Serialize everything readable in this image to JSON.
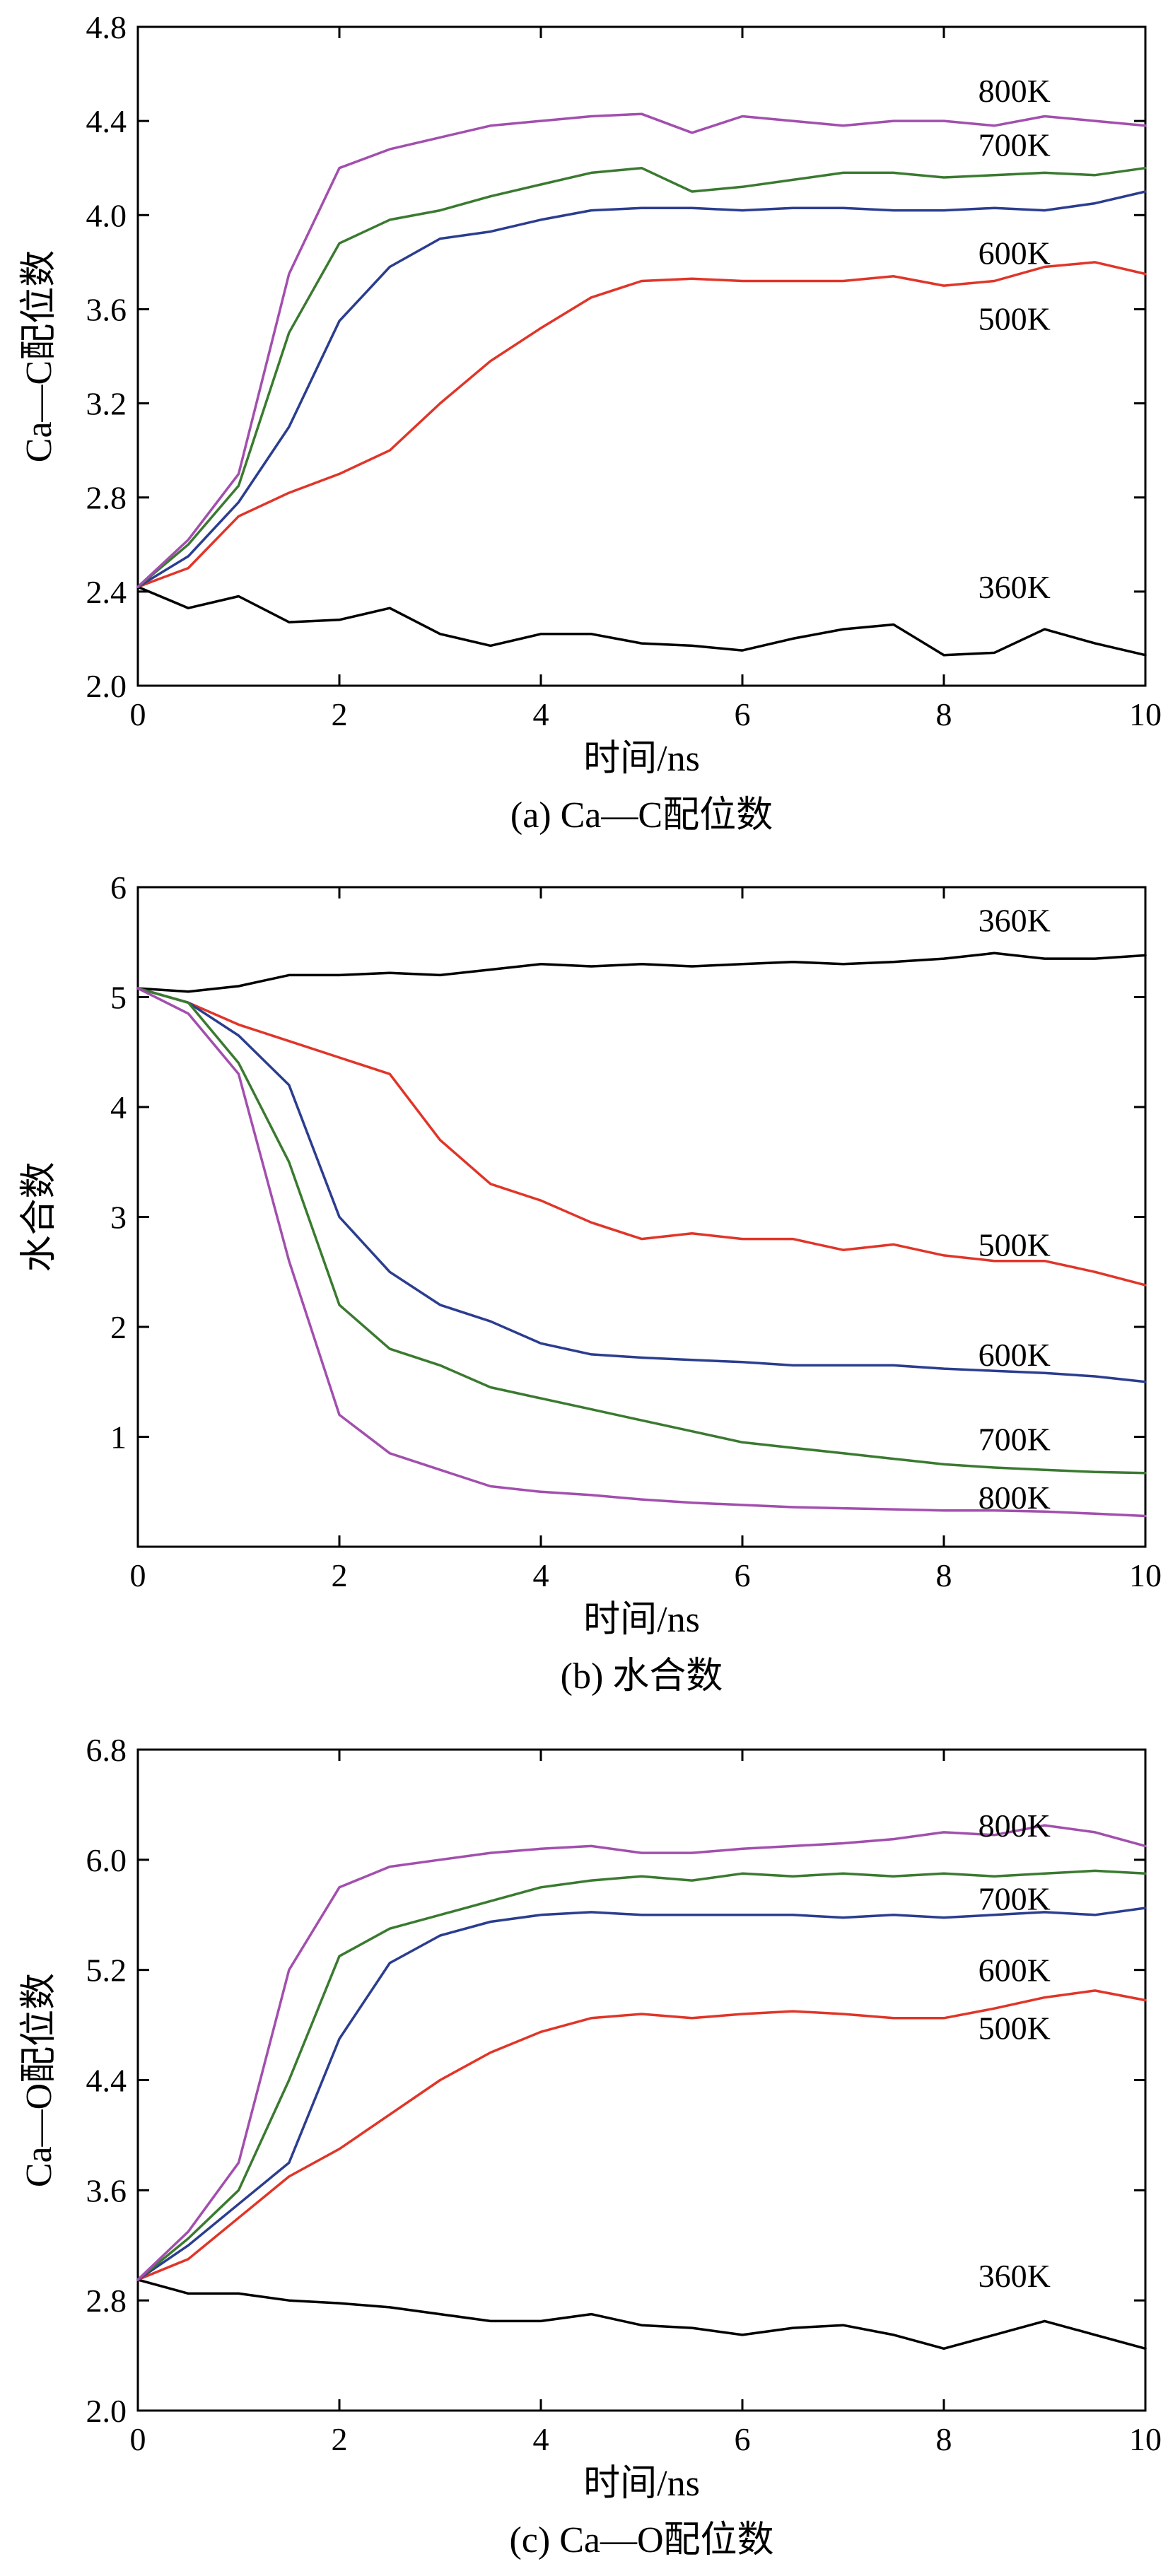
{
  "chart_data": [
    {
      "type": "line",
      "caption": "(a) Ca—C配位数",
      "xlabel": "时间/ns",
      "ylabel": "Ca—C配位数",
      "xlim": [
        0,
        10
      ],
      "ylim": [
        2.0,
        4.8
      ],
      "xticks": [
        0,
        2,
        4,
        6,
        8,
        10
      ],
      "xtick_labels": [
        "0",
        "2",
        "4",
        "6",
        "8",
        "10"
      ],
      "yticks": [
        2.0,
        2.4,
        2.8,
        3.2,
        3.6,
        4.0,
        4.4,
        4.8
      ],
      "ytick_labels": [
        "2.0",
        "2.4",
        "2.8",
        "3.2",
        "3.6",
        "4.0",
        "4.4",
        "4.8"
      ],
      "grid": false,
      "legend": "inline labels at line ends",
      "series": [
        {
          "name": "360K",
          "color": "#000000",
          "label_anchor": [
            8.7,
            2.42
          ],
          "x": [
            0,
            0.5,
            1.0,
            1.5,
            2.0,
            2.5,
            3.0,
            3.5,
            4.0,
            4.5,
            5.0,
            5.5,
            6.0,
            6.5,
            7.0,
            7.5,
            8.0,
            8.5,
            9.0,
            9.5,
            10.0
          ],
          "y": [
            2.42,
            2.33,
            2.38,
            2.27,
            2.28,
            2.33,
            2.22,
            2.17,
            2.22,
            2.22,
            2.18,
            2.17,
            2.15,
            2.2,
            2.24,
            2.26,
            2.13,
            2.14,
            2.24,
            2.18,
            2.13
          ]
        },
        {
          "name": "500K",
          "color": "#e03528",
          "label_anchor": [
            8.7,
            3.56
          ],
          "x": [
            0,
            0.5,
            1.0,
            1.5,
            2.0,
            2.5,
            3.0,
            3.5,
            4.0,
            4.5,
            5.0,
            5.5,
            6.0,
            6.5,
            7.0,
            7.5,
            8.0,
            8.5,
            9.0,
            9.5,
            10.0
          ],
          "y": [
            2.42,
            2.5,
            2.72,
            2.82,
            2.9,
            3.0,
            3.2,
            3.38,
            3.52,
            3.65,
            3.72,
            3.73,
            3.72,
            3.72,
            3.72,
            3.74,
            3.7,
            3.72,
            3.78,
            3.8,
            3.75
          ]
        },
        {
          "name": "600K",
          "color": "#2b3d8f",
          "label_anchor": [
            8.7,
            3.84
          ],
          "x": [
            0,
            0.5,
            1.0,
            1.5,
            2.0,
            2.5,
            3.0,
            3.5,
            4.0,
            4.5,
            5.0,
            5.5,
            6.0,
            6.5,
            7.0,
            7.5,
            8.0,
            8.5,
            9.0,
            9.5,
            10.0
          ],
          "y": [
            2.42,
            2.55,
            2.78,
            3.1,
            3.55,
            3.78,
            3.9,
            3.93,
            3.98,
            4.02,
            4.03,
            4.03,
            4.02,
            4.03,
            4.03,
            4.02,
            4.02,
            4.03,
            4.02,
            4.05,
            4.1
          ]
        },
        {
          "name": "700K",
          "color": "#3a7a30",
          "label_anchor": [
            8.7,
            4.3
          ],
          "x": [
            0,
            0.5,
            1.0,
            1.5,
            2.0,
            2.5,
            3.0,
            3.5,
            4.0,
            4.5,
            5.0,
            5.5,
            6.0,
            6.5,
            7.0,
            7.5,
            8.0,
            8.5,
            9.0,
            9.5,
            10.0
          ],
          "y": [
            2.42,
            2.6,
            2.85,
            3.5,
            3.88,
            3.98,
            4.02,
            4.08,
            4.13,
            4.18,
            4.2,
            4.1,
            4.12,
            4.15,
            4.18,
            4.18,
            4.16,
            4.17,
            4.18,
            4.17,
            4.2
          ]
        },
        {
          "name": "800K",
          "color": "#a24fae",
          "label_anchor": [
            8.7,
            4.53
          ],
          "x": [
            0,
            0.5,
            1.0,
            1.5,
            2.0,
            2.5,
            3.0,
            3.5,
            4.0,
            4.5,
            5.0,
            5.5,
            6.0,
            6.5,
            7.0,
            7.5,
            8.0,
            8.5,
            9.0,
            9.5,
            10.0
          ],
          "y": [
            2.42,
            2.62,
            2.9,
            3.75,
            4.2,
            4.28,
            4.33,
            4.38,
            4.4,
            4.42,
            4.43,
            4.35,
            4.42,
            4.4,
            4.38,
            4.4,
            4.4,
            4.38,
            4.42,
            4.4,
            4.38
          ]
        }
      ]
    },
    {
      "type": "line",
      "caption": "(b) 水合数",
      "xlabel": "时间/ns",
      "ylabel": "水合数",
      "xlim": [
        0,
        10
      ],
      "ylim": [
        0,
        6
      ],
      "xticks": [
        0,
        2,
        4,
        6,
        8,
        10
      ],
      "xtick_labels": [
        "0",
        "2",
        "4",
        "6",
        "8",
        "10"
      ],
      "yticks": [
        1,
        2,
        3,
        4,
        5,
        6
      ],
      "ytick_labels": [
        "1",
        "2",
        "3",
        "4",
        "5",
        "6"
      ],
      "grid": false,
      "legend": "inline labels at line ends",
      "series": [
        {
          "name": "360K",
          "color": "#000000",
          "label_anchor": [
            8.7,
            5.7
          ],
          "x": [
            0,
            0.5,
            1.0,
            1.5,
            2.0,
            2.5,
            3.0,
            3.5,
            4.0,
            4.5,
            5.0,
            5.5,
            6.0,
            6.5,
            7.0,
            7.5,
            8.0,
            8.5,
            9.0,
            9.5,
            10.0
          ],
          "y": [
            5.08,
            5.05,
            5.1,
            5.2,
            5.2,
            5.22,
            5.2,
            5.25,
            5.3,
            5.28,
            5.3,
            5.28,
            5.3,
            5.32,
            5.3,
            5.32,
            5.35,
            5.4,
            5.35,
            5.35,
            5.38
          ]
        },
        {
          "name": "500K",
          "color": "#e03528",
          "label_anchor": [
            8.7,
            2.75
          ],
          "x": [
            0,
            0.5,
            1.0,
            1.5,
            2.0,
            2.5,
            3.0,
            3.5,
            4.0,
            4.5,
            5.0,
            5.5,
            6.0,
            6.5,
            7.0,
            7.5,
            8.0,
            8.5,
            9.0,
            9.5,
            10.0
          ],
          "y": [
            5.08,
            4.95,
            4.75,
            4.6,
            4.45,
            4.3,
            3.7,
            3.3,
            3.15,
            2.95,
            2.8,
            2.85,
            2.8,
            2.8,
            2.7,
            2.75,
            2.65,
            2.6,
            2.6,
            2.5,
            2.38
          ]
        },
        {
          "name": "600K",
          "color": "#2b3d8f",
          "label_anchor": [
            8.7,
            1.75
          ],
          "x": [
            0,
            0.5,
            1.0,
            1.5,
            2.0,
            2.5,
            3.0,
            3.5,
            4.0,
            4.5,
            5.0,
            5.5,
            6.0,
            6.5,
            7.0,
            7.5,
            8.0,
            8.5,
            9.0,
            9.5,
            10.0
          ],
          "y": [
            5.08,
            4.95,
            4.65,
            4.2,
            3.0,
            2.5,
            2.2,
            2.05,
            1.85,
            1.75,
            1.72,
            1.7,
            1.68,
            1.65,
            1.65,
            1.65,
            1.62,
            1.6,
            1.58,
            1.55,
            1.5
          ]
        },
        {
          "name": "700K",
          "color": "#3a7a30",
          "label_anchor": [
            8.7,
            0.98
          ],
          "x": [
            0,
            0.5,
            1.0,
            1.5,
            2.0,
            2.5,
            3.0,
            3.5,
            4.0,
            4.5,
            5.0,
            5.5,
            6.0,
            6.5,
            7.0,
            7.5,
            8.0,
            8.5,
            9.0,
            9.5,
            10.0
          ],
          "y": [
            5.08,
            4.95,
            4.4,
            3.5,
            2.2,
            1.8,
            1.65,
            1.45,
            1.35,
            1.25,
            1.15,
            1.05,
            0.95,
            0.9,
            0.85,
            0.8,
            0.75,
            0.72,
            0.7,
            0.68,
            0.67
          ]
        },
        {
          "name": "800K",
          "color": "#a24fae",
          "label_anchor": [
            8.7,
            0.45
          ],
          "x": [
            0,
            0.5,
            1.0,
            1.5,
            2.0,
            2.5,
            3.0,
            3.5,
            4.0,
            4.5,
            5.0,
            5.5,
            6.0,
            6.5,
            7.0,
            7.5,
            8.0,
            8.5,
            9.0,
            9.5,
            10.0
          ],
          "y": [
            5.08,
            4.85,
            4.3,
            2.6,
            1.2,
            0.85,
            0.7,
            0.55,
            0.5,
            0.47,
            0.43,
            0.4,
            0.38,
            0.36,
            0.35,
            0.34,
            0.33,
            0.33,
            0.32,
            0.3,
            0.28
          ]
        }
      ]
    },
    {
      "type": "line",
      "caption": "(c) Ca—O配位数",
      "xlabel": "时间/ns",
      "ylabel": "Ca—O配位数",
      "xlim": [
        0,
        10
      ],
      "ylim": [
        2.0,
        6.8
      ],
      "xticks": [
        0,
        2,
        4,
        6,
        8,
        10
      ],
      "xtick_labels": [
        "0",
        "2",
        "4",
        "6",
        "8",
        "10"
      ],
      "yticks": [
        2.0,
        2.8,
        3.6,
        4.4,
        5.2,
        6.0,
        6.8
      ],
      "ytick_labels": [
        "2.0",
        "2.8",
        "3.6",
        "4.4",
        "5.2",
        "6.0",
        "6.8"
      ],
      "grid": false,
      "legend": "inline labels at line ends",
      "series": [
        {
          "name": "360K",
          "color": "#000000",
          "label_anchor": [
            8.7,
            2.98
          ],
          "x": [
            0,
            0.5,
            1.0,
            1.5,
            2.0,
            2.5,
            3.0,
            3.5,
            4.0,
            4.5,
            5.0,
            5.5,
            6.0,
            6.5,
            7.0,
            7.5,
            8.0,
            8.5,
            9.0,
            9.5,
            10.0
          ],
          "y": [
            2.95,
            2.85,
            2.85,
            2.8,
            2.78,
            2.75,
            2.7,
            2.65,
            2.65,
            2.7,
            2.62,
            2.6,
            2.55,
            2.6,
            2.62,
            2.55,
            2.45,
            2.55,
            2.65,
            2.55,
            2.45
          ]
        },
        {
          "name": "500K",
          "color": "#e03528",
          "label_anchor": [
            8.7,
            4.78
          ],
          "x": [
            0,
            0.5,
            1.0,
            1.5,
            2.0,
            2.5,
            3.0,
            3.5,
            4.0,
            4.5,
            5.0,
            5.5,
            6.0,
            6.5,
            7.0,
            7.5,
            8.0,
            8.5,
            9.0,
            9.5,
            10.0
          ],
          "y": [
            2.95,
            3.1,
            3.4,
            3.7,
            3.9,
            4.15,
            4.4,
            4.6,
            4.75,
            4.85,
            4.88,
            4.85,
            4.88,
            4.9,
            4.88,
            4.85,
            4.85,
            4.92,
            5.0,
            5.05,
            4.98
          ]
        },
        {
          "name": "600K",
          "color": "#2b3d8f",
          "label_anchor": [
            8.7,
            5.2
          ],
          "x": [
            0,
            0.5,
            1.0,
            1.5,
            2.0,
            2.5,
            3.0,
            3.5,
            4.0,
            4.5,
            5.0,
            5.5,
            6.0,
            6.5,
            7.0,
            7.5,
            8.0,
            8.5,
            9.0,
            9.5,
            10.0
          ],
          "y": [
            2.95,
            3.2,
            3.5,
            3.8,
            4.7,
            5.25,
            5.45,
            5.55,
            5.6,
            5.62,
            5.6,
            5.6,
            5.6,
            5.6,
            5.58,
            5.6,
            5.58,
            5.6,
            5.62,
            5.6,
            5.65
          ]
        },
        {
          "name": "700K",
          "color": "#3a7a30",
          "label_anchor": [
            8.7,
            5.72
          ],
          "x": [
            0,
            0.5,
            1.0,
            1.5,
            2.0,
            2.5,
            3.0,
            3.5,
            4.0,
            4.5,
            5.0,
            5.5,
            6.0,
            6.5,
            7.0,
            7.5,
            8.0,
            8.5,
            9.0,
            9.5,
            10.0
          ],
          "y": [
            2.95,
            3.25,
            3.6,
            4.4,
            5.3,
            5.5,
            5.6,
            5.7,
            5.8,
            5.85,
            5.88,
            5.85,
            5.9,
            5.88,
            5.9,
            5.88,
            5.9,
            5.88,
            5.9,
            5.92,
            5.9
          ]
        },
        {
          "name": "800K",
          "color": "#a24fae",
          "label_anchor": [
            8.7,
            6.25
          ],
          "x": [
            0,
            0.5,
            1.0,
            1.5,
            2.0,
            2.5,
            3.0,
            3.5,
            4.0,
            4.5,
            5.0,
            5.5,
            6.0,
            6.5,
            7.0,
            7.5,
            8.0,
            8.5,
            9.0,
            9.5,
            10.0
          ],
          "y": [
            2.95,
            3.3,
            3.8,
            5.2,
            5.8,
            5.95,
            6.0,
            6.05,
            6.08,
            6.1,
            6.05,
            6.05,
            6.08,
            6.1,
            6.12,
            6.15,
            6.2,
            6.18,
            6.25,
            6.2,
            6.1
          ]
        }
      ]
    }
  ]
}
